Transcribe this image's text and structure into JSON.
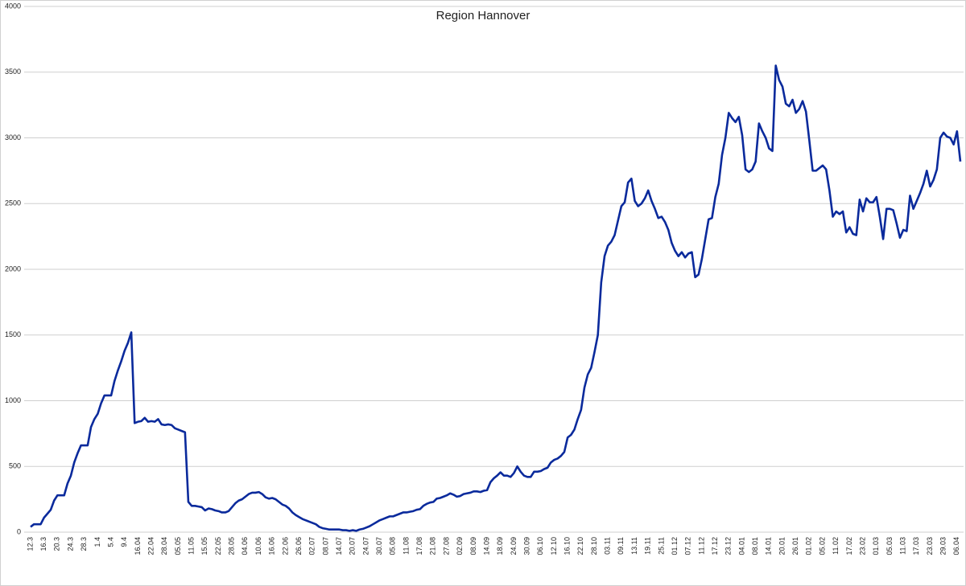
{
  "chart_data": {
    "type": "line",
    "title": "Region Hannover",
    "categories": [
      "12.3",
      null,
      null,
      null,
      "16.3",
      null,
      null,
      null,
      "20.3",
      null,
      null,
      null,
      "24.3",
      null,
      null,
      null,
      "28.3",
      null,
      null,
      null,
      "1.4",
      null,
      null,
      null,
      "5.4",
      null,
      null,
      null,
      "9.4",
      null,
      null,
      null,
      "16.04",
      null,
      null,
      null,
      "22.04",
      null,
      null,
      null,
      "28.04",
      null,
      null,
      null,
      "05.05",
      null,
      null,
      null,
      "11.05",
      null,
      null,
      null,
      "15.05",
      null,
      null,
      null,
      "22.05",
      null,
      null,
      null,
      "28.05",
      null,
      null,
      null,
      "04.06",
      null,
      null,
      null,
      "10.06",
      null,
      null,
      null,
      "16.06",
      null,
      null,
      null,
      "22.06",
      null,
      null,
      null,
      "26.06",
      null,
      null,
      null,
      "02.07",
      null,
      null,
      null,
      "08.07",
      null,
      null,
      null,
      "14.07",
      null,
      null,
      null,
      "20.07",
      null,
      null,
      null,
      "24.07",
      null,
      null,
      null,
      "30.07",
      null,
      null,
      null,
      "05.08",
      null,
      null,
      null,
      "11.08",
      null,
      null,
      null,
      "17.08",
      null,
      null,
      null,
      "21.08",
      null,
      null,
      null,
      "27.08",
      null,
      null,
      null,
      "02.09",
      null,
      null,
      null,
      "08.09",
      null,
      null,
      null,
      "14.09",
      null,
      null,
      null,
      "18.09",
      null,
      null,
      null,
      "24.09",
      null,
      null,
      null,
      "30.09",
      null,
      null,
      null,
      "06.10",
      null,
      null,
      null,
      "12.10",
      null,
      null,
      null,
      "16.10",
      null,
      null,
      null,
      "22.10",
      null,
      null,
      null,
      "28.10",
      null,
      null,
      null,
      "03.11",
      null,
      null,
      null,
      "09.11",
      null,
      null,
      null,
      "13.11",
      null,
      null,
      null,
      "19.11",
      null,
      null,
      null,
      "25.11",
      null,
      null,
      null,
      "01.12",
      null,
      null,
      null,
      "07.12",
      null,
      null,
      null,
      "11.12",
      null,
      null,
      null,
      "17.12",
      null,
      null,
      null,
      "23.12",
      null,
      null,
      null,
      "04.01",
      null,
      null,
      null,
      "08.01",
      null,
      null,
      null,
      "14.01",
      null,
      null,
      null,
      "20.01",
      null,
      null,
      null,
      "26.01",
      null,
      null,
      null,
      "01.02",
      null,
      null,
      null,
      "05.02",
      null,
      null,
      null,
      "11.02",
      null,
      null,
      null,
      "17.02",
      null,
      null,
      null,
      "23.02",
      null,
      null,
      null,
      "01.03",
      null,
      null,
      null,
      "05.03",
      null,
      null,
      null,
      "11.03",
      null,
      null,
      null,
      "17.03",
      null,
      null,
      null,
      "23.03",
      null,
      null,
      null,
      "29.03",
      null,
      null,
      null,
      "06.04",
      null
    ],
    "series": [
      {
        "color": "#0a2a9c",
        "values": [
          40,
          60,
          60,
          60,
          110,
          140,
          170,
          240,
          280,
          280,
          280,
          370,
          430,
          530,
          600,
          660,
          660,
          660,
          800,
          860,
          900,
          980,
          1040,
          1040,
          1040,
          1150,
          1230,
          1300,
          1380,
          1440,
          1520,
          830,
          840,
          845,
          870,
          840,
          845,
          840,
          860,
          820,
          815,
          820,
          815,
          790,
          780,
          770,
          760,
          230,
          200,
          200,
          195,
          190,
          165,
          180,
          175,
          165,
          160,
          150,
          150,
          160,
          190,
          220,
          240,
          250,
          270,
          290,
          300,
          300,
          305,
          290,
          265,
          255,
          260,
          250,
          230,
          210,
          200,
          180,
          150,
          130,
          115,
          100,
          90,
          80,
          70,
          60,
          40,
          30,
          25,
          20,
          20,
          20,
          20,
          15,
          15,
          10,
          15,
          10,
          20,
          25,
          35,
          45,
          60,
          75,
          90,
          100,
          110,
          120,
          120,
          130,
          140,
          150,
          150,
          155,
          160,
          170,
          175,
          200,
          215,
          225,
          230,
          255,
          260,
          270,
          280,
          295,
          285,
          270,
          275,
          290,
          295,
          300,
          310,
          310,
          305,
          315,
          320,
          380,
          410,
          430,
          455,
          430,
          430,
          420,
          450,
          500,
          460,
          430,
          420,
          420,
          460,
          460,
          465,
          480,
          490,
          530,
          550,
          560,
          580,
          610,
          720,
          740,
          780,
          860,
          930,
          1100,
          1200,
          1250,
          1370,
          1500,
          1900,
          2100,
          2180,
          2210,
          2260,
          2370,
          2480,
          2510,
          2660,
          2690,
          2520,
          2480,
          2500,
          2540,
          2600,
          2520,
          2460,
          2390,
          2400,
          2360,
          2300,
          2200,
          2140,
          2100,
          2130,
          2090,
          2120,
          2130,
          1940,
          1960,
          2080,
          2230,
          2380,
          2390,
          2550,
          2650,
          2870,
          3000,
          3190,
          3150,
          3120,
          3160,
          3020,
          2760,
          2740,
          2760,
          2820,
          3110,
          3050,
          3000,
          2920,
          2900,
          3550,
          3440,
          3390,
          3260,
          3240,
          3290,
          3190,
          3220,
          3280,
          3200,
          2980,
          2750,
          2750,
          2770,
          2790,
          2760,
          2600,
          2400,
          2440,
          2420,
          2440,
          2280,
          2320,
          2270,
          2260,
          2530,
          2440,
          2540,
          2510,
          2510,
          2550,
          2400,
          2230,
          2460,
          2460,
          2450,
          2350,
          2240,
          2300,
          2290,
          2560,
          2460,
          2520,
          2580,
          2650,
          2750,
          2630,
          2680,
          2760,
          3000,
          3040,
          3010,
          3000,
          2950,
          3050,
          2820
        ]
      }
    ],
    "ylim": [
      0,
      4000
    ],
    "yticks": [
      0,
      500,
      1000,
      1500,
      2000,
      2500,
      3000,
      3500,
      4000
    ],
    "grid": true
  }
}
